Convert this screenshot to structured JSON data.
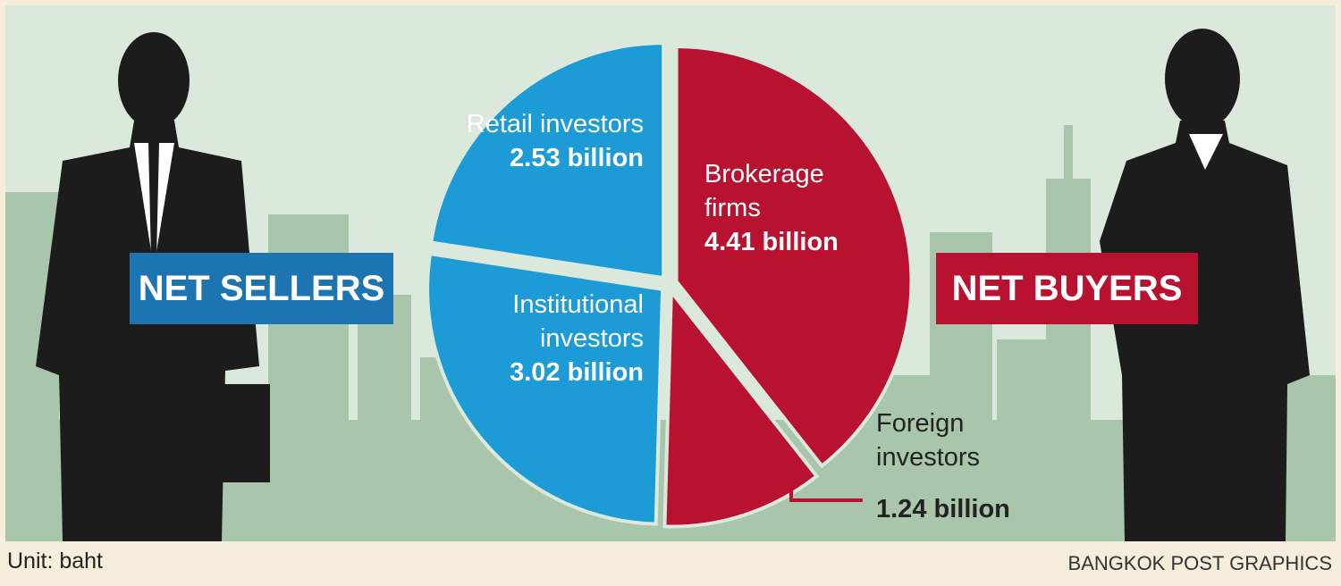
{
  "chart_data": {
    "type": "pie",
    "categories": [
      "Brokerage firms",
      "Foreign investors",
      "Institutional investors",
      "Retail investors"
    ],
    "values": [
      4.41,
      1.24,
      3.02,
      2.53
    ],
    "value_labels": [
      "4.41 billion",
      "1.24 billion",
      "3.02 billion",
      "2.53 billion"
    ],
    "colors": [
      "#b91231",
      "#b91231",
      "#1d9bd6",
      "#1d9bd6"
    ],
    "sellers_label": "NET SELLERS",
    "buyers_label": "NET BUYERS",
    "unit_note": "Unit: baht",
    "credit": "BANGKOK POST GRAPHICS"
  }
}
